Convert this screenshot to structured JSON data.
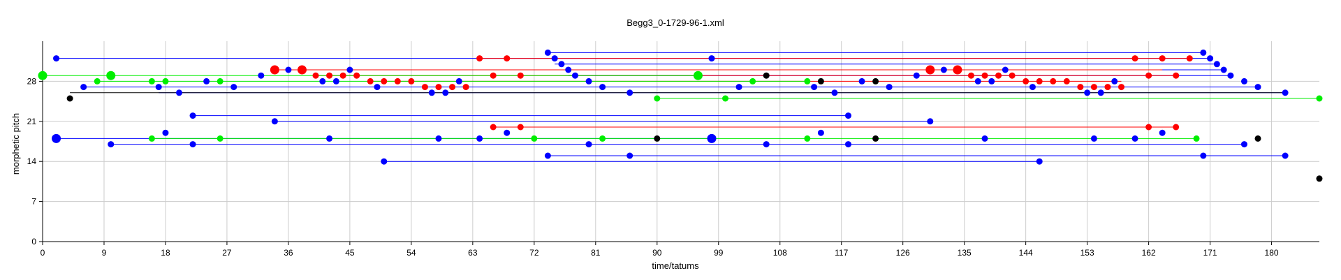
{
  "chart_data": {
    "type": "scatter",
    "title": "Begg3_0-1729-96-1.xml",
    "xlabel": "time/tatums",
    "ylabel": "morphetic pitch",
    "xlim": [
      0,
      187
    ],
    "ylim": [
      0,
      35
    ],
    "x_ticks": [
      0,
      9,
      18,
      27,
      36,
      45,
      54,
      63,
      72,
      81,
      90,
      99,
      108,
      117,
      126,
      135,
      144,
      153,
      162,
      171,
      180
    ],
    "y_ticks": [
      0,
      7,
      14,
      21,
      28
    ],
    "grid": true,
    "colors": {
      "blue": "#0000ff",
      "red": "#ff0000",
      "green": "#00ee00",
      "black": "#000000"
    },
    "segments": [
      {
        "color": "blue",
        "x1": 2,
        "x2": 171,
        "y": 32
      },
      {
        "color": "blue",
        "x1": 74,
        "x2": 170,
        "y": 33
      },
      {
        "color": "blue",
        "x1": 75,
        "x2": 172,
        "y": 31
      },
      {
        "color": "blue",
        "x1": 76,
        "x2": 173,
        "y": 30
      },
      {
        "color": "blue",
        "x1": 77,
        "x2": 174,
        "y": 29
      },
      {
        "color": "blue",
        "x1": 6,
        "x2": 178,
        "y": 27
      },
      {
        "color": "blue",
        "x1": 17,
        "x2": 182,
        "y": 26
      },
      {
        "color": "blue",
        "x1": 22,
        "x2": 118,
        "y": 22
      },
      {
        "color": "blue",
        "x1": 34,
        "x2": 130,
        "y": 21
      },
      {
        "color": "blue",
        "x1": 2,
        "x2": 98,
        "y": 18
      },
      {
        "color": "blue",
        "x1": 10,
        "x2": 176,
        "y": 17
      },
      {
        "color": "blue",
        "x1": 74,
        "x2": 182,
        "y": 15
      },
      {
        "color": "blue",
        "x1": 50,
        "x2": 146,
        "y": 14
      },
      {
        "color": "red",
        "x1": 34,
        "x2": 164,
        "y": 30
      },
      {
        "color": "red",
        "x1": 64,
        "x2": 168,
        "y": 32
      },
      {
        "color": "red",
        "x1": 40,
        "x2": 166,
        "y": 29
      },
      {
        "color": "red",
        "x1": 48,
        "x2": 158,
        "y": 28
      },
      {
        "color": "red",
        "x1": 66,
        "x2": 166,
        "y": 20
      },
      {
        "color": "green",
        "x1": 0,
        "x2": 96,
        "y": 29
      },
      {
        "color": "green",
        "x1": 8,
        "x2": 112,
        "y": 28
      },
      {
        "color": "green",
        "x1": 90,
        "x2": 187,
        "y": 25
      },
      {
        "color": "green",
        "x1": 16,
        "x2": 169,
        "y": 18
      },
      {
        "color": "black",
        "x1": 4,
        "x2": 182,
        "y": 26
      }
    ],
    "points": [
      {
        "color": "blue",
        "x": 2,
        "y": 32
      },
      {
        "color": "blue",
        "x": 98,
        "y": 32
      },
      {
        "color": "blue",
        "x": 74,
        "y": 33
      },
      {
        "color": "blue",
        "x": 170,
        "y": 33
      },
      {
        "color": "blue",
        "x": 75,
        "y": 32
      },
      {
        "color": "blue",
        "x": 171,
        "y": 32
      },
      {
        "color": "blue",
        "x": 76,
        "y": 31
      },
      {
        "color": "blue",
        "x": 172,
        "y": 31
      },
      {
        "color": "blue",
        "x": 77,
        "y": 30
      },
      {
        "color": "blue",
        "x": 173,
        "y": 30
      },
      {
        "color": "blue",
        "x": 78,
        "y": 29
      },
      {
        "color": "blue",
        "x": 174,
        "y": 29
      },
      {
        "color": "blue",
        "x": 36,
        "y": 30
      },
      {
        "color": "blue",
        "x": 45,
        "y": 30
      },
      {
        "color": "blue",
        "x": 32,
        "y": 29
      },
      {
        "color": "blue",
        "x": 128,
        "y": 29
      },
      {
        "color": "blue",
        "x": 132,
        "y": 30
      },
      {
        "color": "blue",
        "x": 141,
        "y": 30
      },
      {
        "color": "blue",
        "x": 24,
        "y": 28
      },
      {
        "color": "blue",
        "x": 41,
        "y": 28
      },
      {
        "color": "blue",
        "x": 43,
        "y": 28
      },
      {
        "color": "blue",
        "x": 61,
        "y": 28
      },
      {
        "color": "blue",
        "x": 80,
        "y": 28
      },
      {
        "color": "blue",
        "x": 120,
        "y": 28
      },
      {
        "color": "blue",
        "x": 137,
        "y": 28
      },
      {
        "color": "blue",
        "x": 139,
        "y": 28
      },
      {
        "color": "blue",
        "x": 157,
        "y": 28
      },
      {
        "color": "blue",
        "x": 176,
        "y": 28
      },
      {
        "color": "blue",
        "x": 6,
        "y": 27
      },
      {
        "color": "blue",
        "x": 17,
        "y": 27
      },
      {
        "color": "blue",
        "x": 28,
        "y": 27
      },
      {
        "color": "blue",
        "x": 49,
        "y": 27
      },
      {
        "color": "blue",
        "x": 82,
        "y": 27
      },
      {
        "color": "blue",
        "x": 102,
        "y": 27
      },
      {
        "color": "blue",
        "x": 113,
        "y": 27
      },
      {
        "color": "blue",
        "x": 124,
        "y": 27
      },
      {
        "color": "blue",
        "x": 145,
        "y": 27
      },
      {
        "color": "blue",
        "x": 178,
        "y": 27
      },
      {
        "color": "blue",
        "x": 20,
        "y": 26
      },
      {
        "color": "blue",
        "x": 57,
        "y": 26
      },
      {
        "color": "blue",
        "x": 59,
        "y": 26
      },
      {
        "color": "blue",
        "x": 86,
        "y": 26
      },
      {
        "color": "blue",
        "x": 116,
        "y": 26
      },
      {
        "color": "blue",
        "x": 153,
        "y": 26
      },
      {
        "color": "blue",
        "x": 155,
        "y": 26
      },
      {
        "color": "blue",
        "x": 182,
        "y": 26
      },
      {
        "color": "blue",
        "x": 22,
        "y": 22
      },
      {
        "color": "blue",
        "x": 118,
        "y": 22
      },
      {
        "color": "blue",
        "x": 34,
        "y": 21
      },
      {
        "color": "blue",
        "x": 130,
        "y": 21
      },
      {
        "color": "blue",
        "x": 18,
        "y": 19
      },
      {
        "color": "blue",
        "x": 68,
        "y": 19
      },
      {
        "color": "blue",
        "x": 114,
        "y": 19
      },
      {
        "color": "blue",
        "x": 164,
        "y": 19
      },
      {
        "color": "blue",
        "x": 2,
        "y": 18,
        "size": "large"
      },
      {
        "color": "blue",
        "x": 42,
        "y": 18
      },
      {
        "color": "blue",
        "x": 58,
        "y": 18
      },
      {
        "color": "blue",
        "x": 64,
        "y": 18
      },
      {
        "color": "blue",
        "x": 98,
        "y": 18,
        "size": "large"
      },
      {
        "color": "blue",
        "x": 138,
        "y": 18
      },
      {
        "color": "blue",
        "x": 154,
        "y": 18
      },
      {
        "color": "blue",
        "x": 160,
        "y": 18
      },
      {
        "color": "blue",
        "x": 10,
        "y": 17
      },
      {
        "color": "blue",
        "x": 22,
        "y": 17
      },
      {
        "color": "blue",
        "x": 80,
        "y": 17
      },
      {
        "color": "blue",
        "x": 106,
        "y": 17
      },
      {
        "color": "blue",
        "x": 118,
        "y": 17
      },
      {
        "color": "blue",
        "x": 176,
        "y": 17
      },
      {
        "color": "blue",
        "x": 74,
        "y": 15
      },
      {
        "color": "blue",
        "x": 86,
        "y": 15
      },
      {
        "color": "blue",
        "x": 170,
        "y": 15
      },
      {
        "color": "blue",
        "x": 182,
        "y": 15
      },
      {
        "color": "blue",
        "x": 50,
        "y": 14
      },
      {
        "color": "blue",
        "x": 146,
        "y": 14
      },
      {
        "color": "red",
        "x": 64,
        "y": 32
      },
      {
        "color": "red",
        "x": 68,
        "y": 32
      },
      {
        "color": "red",
        "x": 160,
        "y": 32
      },
      {
        "color": "red",
        "x": 164,
        "y": 32
      },
      {
        "color": "red",
        "x": 168,
        "y": 32
      },
      {
        "color": "red",
        "x": 34,
        "y": 30,
        "size": "large"
      },
      {
        "color": "red",
        "x": 38,
        "y": 30,
        "size": "large"
      },
      {
        "color": "red",
        "x": 130,
        "y": 30,
        "size": "large"
      },
      {
        "color": "red",
        "x": 134,
        "y": 30,
        "size": "large"
      },
      {
        "color": "red",
        "x": 40,
        "y": 29
      },
      {
        "color": "red",
        "x": 42,
        "y": 29
      },
      {
        "color": "red",
        "x": 44,
        "y": 29
      },
      {
        "color": "red",
        "x": 46,
        "y": 29
      },
      {
        "color": "red",
        "x": 66,
        "y": 29
      },
      {
        "color": "red",
        "x": 70,
        "y": 29
      },
      {
        "color": "red",
        "x": 136,
        "y": 29
      },
      {
        "color": "red",
        "x": 138,
        "y": 29
      },
      {
        "color": "red",
        "x": 140,
        "y": 29
      },
      {
        "color": "red",
        "x": 142,
        "y": 29
      },
      {
        "color": "red",
        "x": 162,
        "y": 29
      },
      {
        "color": "red",
        "x": 166,
        "y": 29
      },
      {
        "color": "red",
        "x": 48,
        "y": 28
      },
      {
        "color": "red",
        "x": 50,
        "y": 28
      },
      {
        "color": "red",
        "x": 52,
        "y": 28
      },
      {
        "color": "red",
        "x": 54,
        "y": 28
      },
      {
        "color": "red",
        "x": 144,
        "y": 28
      },
      {
        "color": "red",
        "x": 146,
        "y": 28
      },
      {
        "color": "red",
        "x": 148,
        "y": 28
      },
      {
        "color": "red",
        "x": 150,
        "y": 28
      },
      {
        "color": "red",
        "x": 56,
        "y": 27
      },
      {
        "color": "red",
        "x": 58,
        "y": 27
      },
      {
        "color": "red",
        "x": 60,
        "y": 27
      },
      {
        "color": "red",
        "x": 62,
        "y": 27
      },
      {
        "color": "red",
        "x": 152,
        "y": 27
      },
      {
        "color": "red",
        "x": 154,
        "y": 27
      },
      {
        "color": "red",
        "x": 156,
        "y": 27
      },
      {
        "color": "red",
        "x": 158,
        "y": 27
      },
      {
        "color": "red",
        "x": 66,
        "y": 20
      },
      {
        "color": "red",
        "x": 70,
        "y": 20
      },
      {
        "color": "red",
        "x": 162,
        "y": 20
      },
      {
        "color": "red",
        "x": 166,
        "y": 20
      },
      {
        "color": "green",
        "x": 0,
        "y": 29,
        "size": "large"
      },
      {
        "color": "green",
        "x": 10,
        "y": 29,
        "size": "large"
      },
      {
        "color": "green",
        "x": 96,
        "y": 29,
        "size": "large"
      },
      {
        "color": "green",
        "x": 8,
        "y": 28
      },
      {
        "color": "green",
        "x": 16,
        "y": 28
      },
      {
        "color": "green",
        "x": 18,
        "y": 28
      },
      {
        "color": "green",
        "x": 26,
        "y": 28
      },
      {
        "color": "green",
        "x": 104,
        "y": 28
      },
      {
        "color": "green",
        "x": 112,
        "y": 28
      },
      {
        "color": "green",
        "x": 90,
        "y": 25
      },
      {
        "color": "green",
        "x": 100,
        "y": 25
      },
      {
        "color": "green",
        "x": 187,
        "y": 25
      },
      {
        "color": "green",
        "x": 16,
        "y": 18
      },
      {
        "color": "green",
        "x": 26,
        "y": 18
      },
      {
        "color": "green",
        "x": 72,
        "y": 18
      },
      {
        "color": "green",
        "x": 82,
        "y": 18
      },
      {
        "color": "green",
        "x": 112,
        "y": 18
      },
      {
        "color": "green",
        "x": 169,
        "y": 18
      },
      {
        "color": "black",
        "x": 4,
        "y": 25
      },
      {
        "color": "black",
        "x": 106,
        "y": 29
      },
      {
        "color": "black",
        "x": 114,
        "y": 28
      },
      {
        "color": "black",
        "x": 122,
        "y": 28
      },
      {
        "color": "black",
        "x": 90,
        "y": 18
      },
      {
        "color": "black",
        "x": 122,
        "y": 18
      },
      {
        "color": "black",
        "x": 178,
        "y": 18
      },
      {
        "color": "black",
        "x": 187,
        "y": 11
      }
    ]
  }
}
